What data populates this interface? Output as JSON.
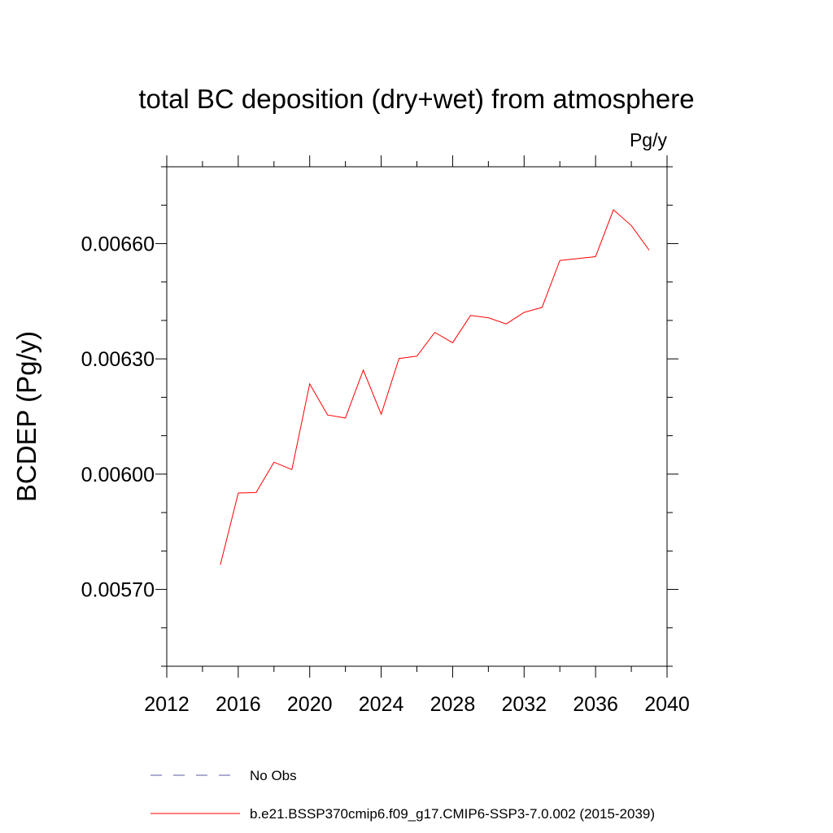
{
  "chart_data": {
    "type": "line",
    "title": "total BC deposition (dry+wet) from atmosphere",
    "units_label": "Pg/y",
    "ylabel": "BCDEP  (Pg/y)",
    "xlabel": "",
    "xlim": [
      2012,
      2040
    ],
    "ylim": [
      0.0055,
      0.0068
    ],
    "x_ticks": [
      2012,
      2016,
      2020,
      2024,
      2028,
      2032,
      2036,
      2040
    ],
    "x_tick_labels": [
      "2012",
      "2016",
      "2020",
      "2024",
      "2028",
      "2032",
      "2036",
      "2040"
    ],
    "x_minor_step": 2,
    "y_ticks": [
      0.0057,
      0.006,
      0.0063,
      0.0066
    ],
    "y_tick_labels": [
      "0.00570",
      "0.00600",
      "0.00630",
      "0.00660"
    ],
    "y_minor_step": 0.0001,
    "grid": false,
    "legend_position": "bottom",
    "series": [
      {
        "name": "b.e21.BSSP370cmip6.f09_g17.CMIP6-SSP3-7.0.002 (2015-2039)",
        "color": "#ff0000",
        "dash": "solid",
        "x": [
          2015,
          2016,
          2017,
          2018,
          2019,
          2020,
          2021,
          2022,
          2023,
          2024,
          2025,
          2026,
          2027,
          2028,
          2029,
          2030,
          2031,
          2032,
          2033,
          2034,
          2035,
          2036,
          2037,
          2038,
          2039
        ],
        "y": [
          0.005764,
          0.005951,
          0.005952,
          0.006031,
          0.006012,
          0.006235,
          0.006154,
          0.006146,
          0.006271,
          0.006156,
          0.006301,
          0.006307,
          0.006369,
          0.006342,
          0.006413,
          0.006407,
          0.006391,
          0.006421,
          0.006434,
          0.006556,
          0.006561,
          0.006566,
          0.006688,
          0.006647,
          0.006583
        ]
      },
      {
        "name": "No Obs",
        "color": "#5a5aa0",
        "dash": "dashed",
        "x": [],
        "y": []
      }
    ]
  }
}
